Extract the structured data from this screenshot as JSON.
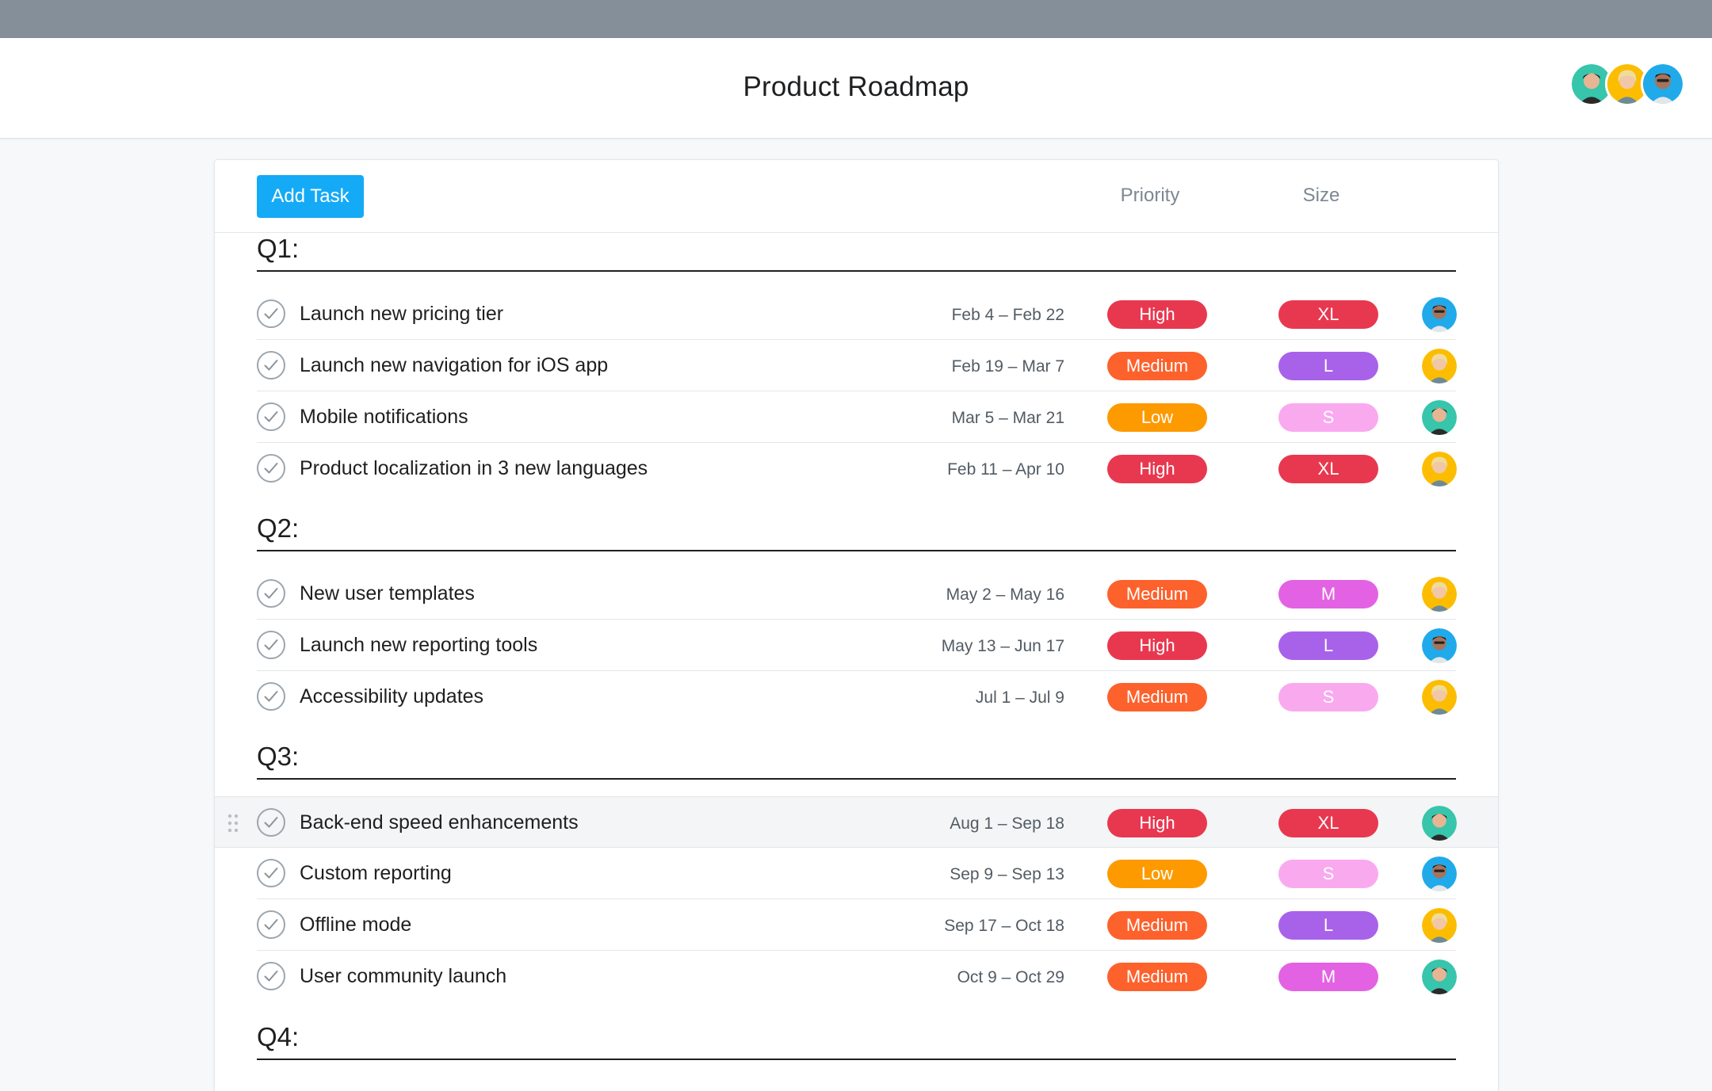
{
  "header": {
    "title": "Product Roadmap"
  },
  "team": [
    {
      "name": "green-avatar"
    },
    {
      "name": "yellow-avatar"
    },
    {
      "name": "blue-avatar"
    }
  ],
  "toolbar": {
    "add_task_label": "Add Task",
    "priority_header": "Priority",
    "size_header": "Size"
  },
  "colors": {
    "High": "#e8384f",
    "Medium": "#fd612c",
    "Low": "#fd9a00",
    "XL": "#e8384f",
    "L": "#a862ea",
    "M": "#e362e3",
    "S": "#f9aaef",
    "accent": "#14aaf5"
  },
  "sections": [
    {
      "title": "Q1:",
      "tasks": [
        {
          "name": "Launch new pricing tier",
          "dates": "Feb 4 – Feb 22",
          "priority": "High",
          "size": "XL",
          "assignee": "blue"
        },
        {
          "name": "Launch new navigation for iOS app",
          "dates": "Feb 19 – Mar 7",
          "priority": "Medium",
          "size": "L",
          "assignee": "yellow"
        },
        {
          "name": "Mobile notifications",
          "dates": "Mar 5 – Mar 21",
          "priority": "Low",
          "size": "S",
          "assignee": "green"
        },
        {
          "name": "Product localization in 3 new languages",
          "dates": "Feb 11 – Apr 10",
          "priority": "High",
          "size": "XL",
          "assignee": "yellow"
        }
      ]
    },
    {
      "title": "Q2:",
      "tasks": [
        {
          "name": "New user templates",
          "dates": "May 2 – May 16",
          "priority": "Medium",
          "size": "M",
          "assignee": "yellow"
        },
        {
          "name": "Launch new reporting tools",
          "dates": "May 13 – Jun 17",
          "priority": "High",
          "size": "L",
          "assignee": "blue"
        },
        {
          "name": "Accessibility updates",
          "dates": "Jul 1 – Jul 9",
          "priority": "Medium",
          "size": "S",
          "assignee": "yellow"
        }
      ]
    },
    {
      "title": "Q3:",
      "tasks": [
        {
          "name": "Back-end speed enhancements",
          "dates": "Aug 1 – Sep 18",
          "priority": "High",
          "size": "XL",
          "assignee": "green"
        },
        {
          "name": "Custom reporting",
          "dates": "Sep 9 – Sep 13",
          "priority": "Low",
          "size": "S",
          "assignee": "blue"
        },
        {
          "name": "Offline mode",
          "dates": "Sep 17 – Oct 18",
          "priority": "Medium",
          "size": "L",
          "assignee": "yellow"
        },
        {
          "name": "User community launch",
          "dates": "Oct 9 – Oct 29",
          "priority": "Medium",
          "size": "M",
          "assignee": "green"
        }
      ]
    },
    {
      "title": "Q4:",
      "tasks": []
    }
  ]
}
